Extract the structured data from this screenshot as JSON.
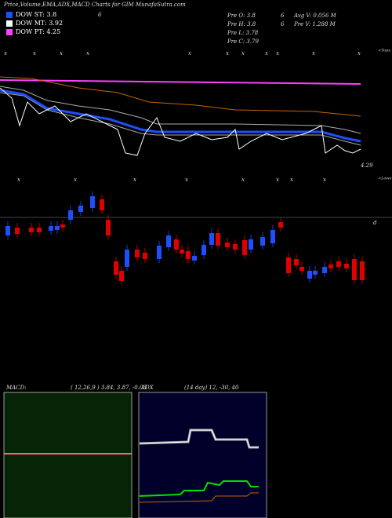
{
  "header": {
    "title": "Price,Volume,EMA,ADX,MACD Charts for GIM MunafaSutra.com"
  },
  "legend": [
    {
      "label": "DOW ST: 3.8",
      "extra": "6",
      "color": "#1e4fff"
    },
    {
      "label": "DOW MT: 3.92",
      "color": "#ffffff"
    },
    {
      "label": "DOW PT: 4.25",
      "color": "#ff40ff"
    }
  ],
  "info": [
    [
      "Pre  O: 3.8",
      "6",
      "Avg  V: 0.056  M"
    ],
    [
      "Pre  H: 3.8",
      "6",
      "Pre  V: 1.288  M"
    ],
    [
      "Pre  L: 3.78"
    ],
    [
      "Pre  C: 3.79"
    ]
  ],
  "price_panel": {
    "tops_label": "<Tops",
    "lows_label": "<Lows",
    "last_price": "4.29",
    "volume_marker": "d",
    "top_markers": [
      "x",
      "x",
      "x",
      "x",
      "x",
      "x",
      "x",
      "x",
      "x",
      "x",
      "x"
    ],
    "bottom_markers": [
      "x",
      "x",
      "x",
      "x",
      "x",
      "x",
      "x",
      "x"
    ]
  },
  "macd": {
    "title": "MACD:",
    "params": "( 12,26,9 ) 3.84, 3.87, -0.03"
  },
  "adx": {
    "title": "ADX",
    "params": "(14  day) 12,  -30,  40"
  }
}
